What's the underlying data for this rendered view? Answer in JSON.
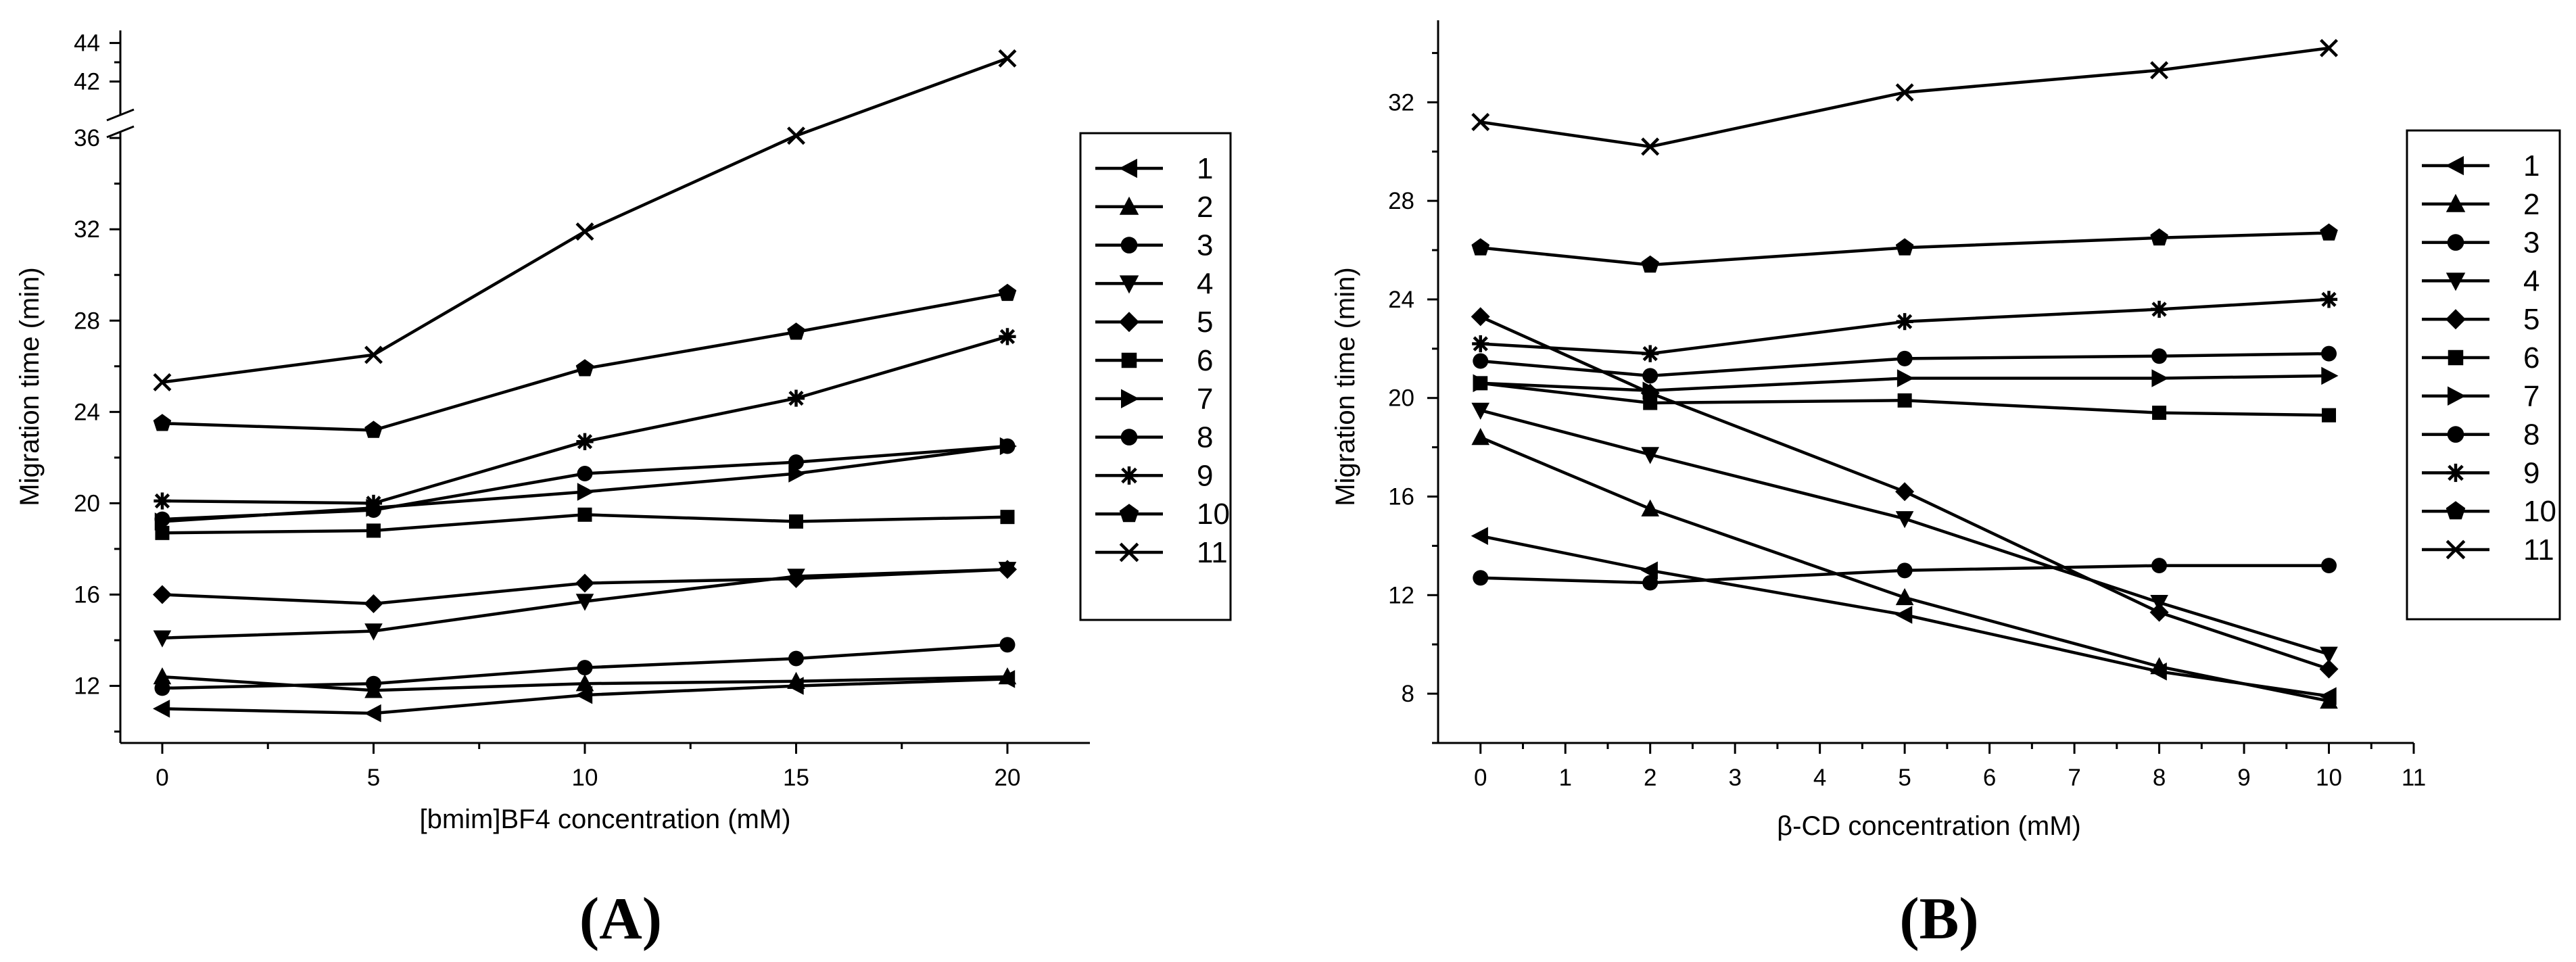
{
  "chart_data": [
    {
      "type": "line",
      "panel_label": "(A)",
      "xlabel": "[bmim]BF4 concentration (mM)",
      "ylabel": "Migration time (min)",
      "x": [
        0,
        5,
        10,
        15,
        20
      ],
      "xticks": [
        "0",
        "5",
        "10",
        "15",
        "20"
      ],
      "yticks_lower": [
        "12",
        "16",
        "20",
        "24",
        "28",
        "32",
        "36"
      ],
      "yticks_upper": [
        "42",
        "44"
      ],
      "ylim_lower": [
        9.5,
        36.8
      ],
      "ylim_upper": [
        41.6,
        44.9
      ],
      "axis_break": true,
      "legend_position": "right",
      "series": [
        {
          "name": "1",
          "marker": "triangle-left",
          "values": [
            11.0,
            10.8,
            11.6,
            12.0,
            12.3
          ]
        },
        {
          "name": "2",
          "marker": "triangle-up",
          "values": [
            12.4,
            11.8,
            12.1,
            12.2,
            12.4
          ]
        },
        {
          "name": "3",
          "marker": "circle",
          "values": [
            11.9,
            12.1,
            12.8,
            13.2,
            13.8
          ]
        },
        {
          "name": "4",
          "marker": "triangle-down",
          "values": [
            14.1,
            14.4,
            15.7,
            16.8,
            17.1
          ]
        },
        {
          "name": "5",
          "marker": "diamond",
          "values": [
            16.0,
            15.6,
            16.5,
            16.7,
            17.1
          ]
        },
        {
          "name": "6",
          "marker": "square",
          "values": [
            18.7,
            18.8,
            19.5,
            19.2,
            19.4
          ]
        },
        {
          "name": "7",
          "marker": "triangle-right",
          "values": [
            19.2,
            19.8,
            20.5,
            21.3,
            22.5
          ]
        },
        {
          "name": "8",
          "marker": "circle",
          "values": [
            19.3,
            19.7,
            21.3,
            21.8,
            22.5
          ]
        },
        {
          "name": "9",
          "marker": "asterisk",
          "values": [
            20.1,
            20.0,
            22.7,
            24.6,
            27.3
          ]
        },
        {
          "name": "10",
          "marker": "pentagon",
          "values": [
            23.5,
            23.2,
            25.9,
            27.5,
            29.2
          ]
        },
        {
          "name": "11",
          "marker": "x",
          "values": [
            25.3,
            26.5,
            31.9,
            36.1,
            43.2
          ]
        }
      ]
    },
    {
      "type": "line",
      "panel_label": "(B)",
      "xlabel": "β-CD concentration (mM)",
      "ylabel": "Migration time (min)",
      "x": [
        0,
        2,
        5,
        8,
        10
      ],
      "xticks": [
        "0",
        "1",
        "2",
        "3",
        "4",
        "5",
        "6",
        "7",
        "8",
        "9",
        "10",
        "11"
      ],
      "yticks": [
        "8",
        "12",
        "16",
        "20",
        "24",
        "28",
        "32"
      ],
      "xlim": [
        -0.5,
        11
      ],
      "ylim": [
        6,
        35.3
      ],
      "legend_position": "right",
      "series": [
        {
          "name": "1",
          "marker": "triangle-left",
          "values": [
            14.4,
            13.0,
            11.2,
            8.9,
            7.9
          ]
        },
        {
          "name": "2",
          "marker": "triangle-up",
          "values": [
            18.4,
            15.5,
            11.9,
            9.1,
            7.7
          ]
        },
        {
          "name": "3",
          "marker": "circle",
          "values": [
            12.7,
            12.5,
            13.0,
            13.2,
            13.2
          ]
        },
        {
          "name": "4",
          "marker": "triangle-down",
          "values": [
            19.5,
            17.7,
            15.1,
            11.7,
            9.6
          ]
        },
        {
          "name": "5",
          "marker": "diamond",
          "values": [
            23.3,
            20.2,
            16.2,
            11.3,
            9.0
          ]
        },
        {
          "name": "6",
          "marker": "square",
          "values": [
            20.6,
            19.8,
            19.9,
            19.4,
            19.3
          ]
        },
        {
          "name": "7",
          "marker": "triangle-right",
          "values": [
            20.6,
            20.3,
            20.8,
            20.8,
            20.9
          ]
        },
        {
          "name": "8",
          "marker": "circle",
          "values": [
            21.5,
            20.9,
            21.6,
            21.7,
            21.8
          ]
        },
        {
          "name": "9",
          "marker": "asterisk",
          "values": [
            22.2,
            21.8,
            23.1,
            23.6,
            24.0
          ]
        },
        {
          "name": "10",
          "marker": "pentagon",
          "values": [
            26.1,
            25.4,
            26.1,
            26.5,
            26.7
          ]
        },
        {
          "name": "11",
          "marker": "x",
          "values": [
            31.2,
            30.2,
            32.4,
            33.3,
            34.2
          ]
        }
      ]
    }
  ]
}
